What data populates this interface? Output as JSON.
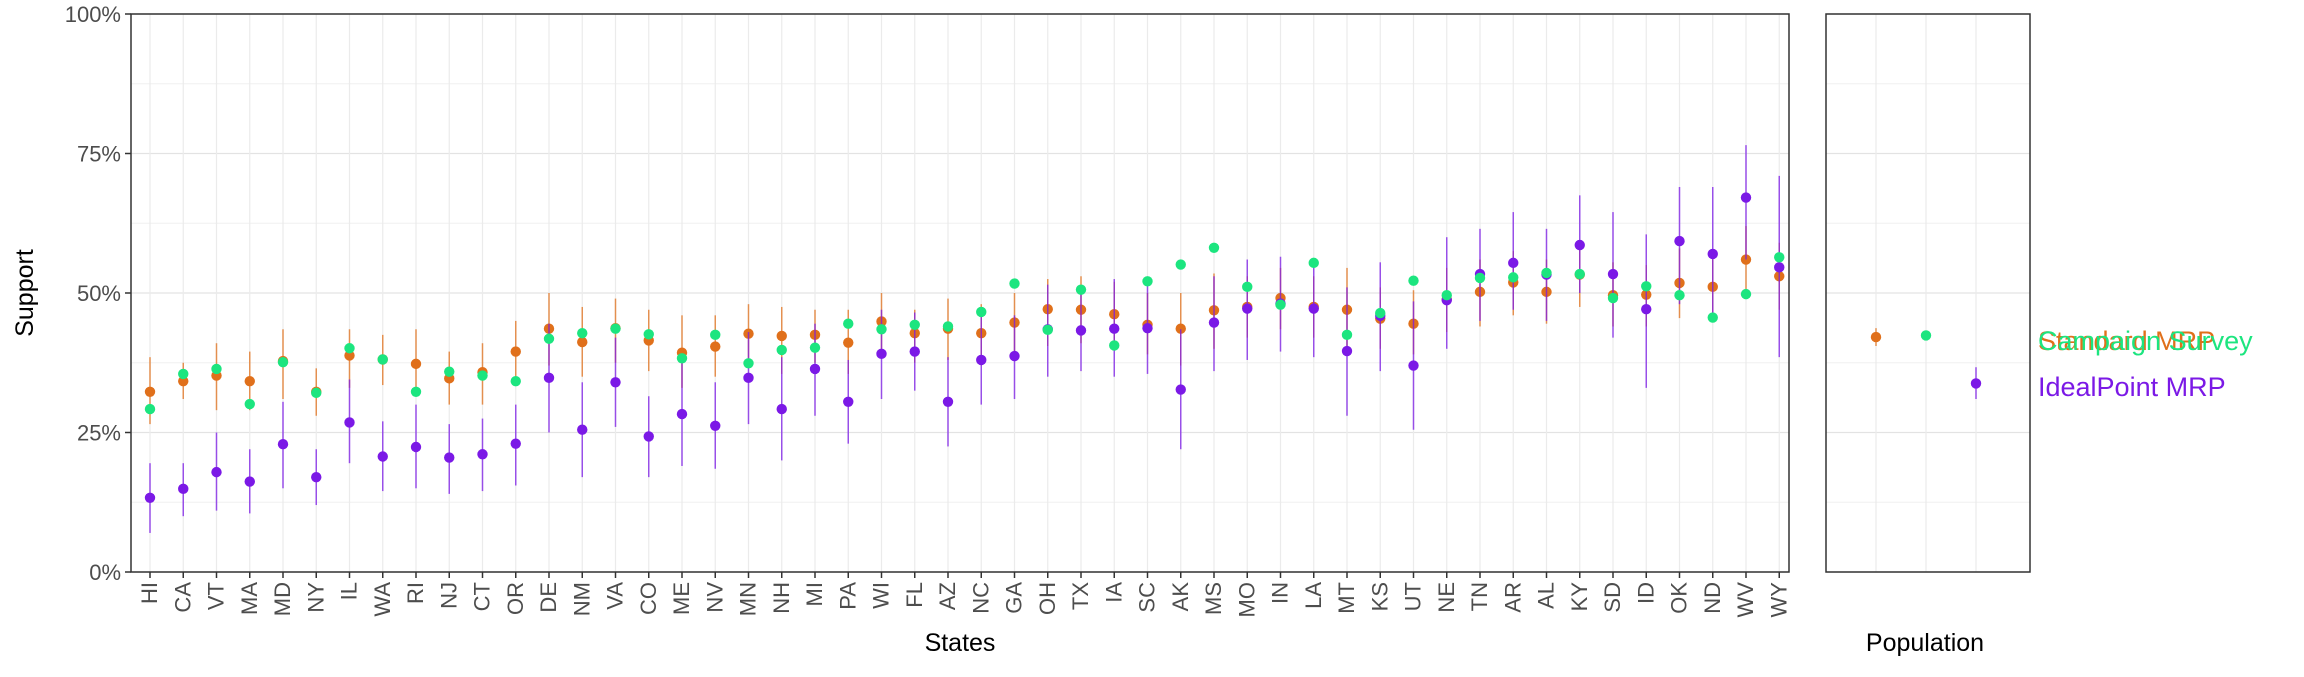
{
  "chart_data": {
    "type": "scatter",
    "ylabel": "Support",
    "xlabel": "States",
    "ylim": [
      0,
      1
    ],
    "y_ticks": [
      0,
      0.25,
      0.5,
      0.75,
      1.0
    ],
    "y_tick_labels": [
      "0%",
      "25%",
      "50%",
      "75%",
      "100%"
    ],
    "grid": true,
    "legend_position": "right",
    "categories": [
      "HI",
      "CA",
      "VT",
      "MA",
      "MD",
      "NY",
      "IL",
      "WA",
      "RI",
      "NJ",
      "CT",
      "OR",
      "DE",
      "NM",
      "VA",
      "CO",
      "ME",
      "NV",
      "MN",
      "NH",
      "MI",
      "PA",
      "WI",
      "FL",
      "AZ",
      "NC",
      "GA",
      "OH",
      "TX",
      "IA",
      "SC",
      "AK",
      "MS",
      "MO",
      "IN",
      "LA",
      "MT",
      "KS",
      "UT",
      "NE",
      "TN",
      "AR",
      "AL",
      "KY",
      "SD",
      "ID",
      "OK",
      "ND",
      "WV",
      "WY"
    ],
    "series": [
      {
        "name": "Standard MRP",
        "color": "#E0701B",
        "values": [
          0.323,
          0.342,
          0.352,
          0.342,
          0.378,
          0.323,
          0.388,
          0.381,
          0.373,
          0.347,
          0.358,
          0.395,
          0.436,
          0.412,
          0.437,
          0.415,
          0.393,
          0.404,
          0.427,
          0.423,
          0.425,
          0.411,
          0.449,
          0.428,
          0.436,
          0.428,
          0.447,
          0.471,
          0.47,
          0.462,
          0.443,
          0.436,
          0.469,
          0.475,
          0.491,
          0.475,
          0.47,
          0.454,
          0.445,
          0.489,
          0.502,
          0.519,
          0.502,
          0.533,
          0.496,
          0.497,
          0.518,
          0.511,
          0.56,
          0.53
        ],
        "lower": [
          0.265,
          0.31,
          0.29,
          0.29,
          0.31,
          0.28,
          0.33,
          0.335,
          0.32,
          0.3,
          0.3,
          0.335,
          0.37,
          0.35,
          0.375,
          0.36,
          0.33,
          0.35,
          0.365,
          0.355,
          0.375,
          0.355,
          0.39,
          0.375,
          0.38,
          0.37,
          0.395,
          0.405,
          0.41,
          0.4,
          0.39,
          0.37,
          0.4,
          0.42,
          0.435,
          0.42,
          0.4,
          0.4,
          0.39,
          0.43,
          0.44,
          0.46,
          0.445,
          0.475,
          0.44,
          0.44,
          0.455,
          0.455,
          0.495,
          0.47
        ],
        "upper": [
          0.385,
          0.375,
          0.41,
          0.395,
          0.435,
          0.365,
          0.435,
          0.425,
          0.435,
          0.395,
          0.41,
          0.45,
          0.5,
          0.475,
          0.49,
          0.47,
          0.46,
          0.46,
          0.48,
          0.475,
          0.47,
          0.47,
          0.5,
          0.47,
          0.49,
          0.48,
          0.5,
          0.525,
          0.53,
          0.52,
          0.5,
          0.5,
          0.535,
          0.53,
          0.545,
          0.53,
          0.545,
          0.51,
          0.505,
          0.545,
          0.56,
          0.575,
          0.56,
          0.595,
          0.555,
          0.55,
          0.58,
          0.57,
          0.62,
          0.59
        ]
      },
      {
        "name": "IdealPoint MRP",
        "color": "#7B19E6",
        "values": [
          0.133,
          0.149,
          0.179,
          0.162,
          0.229,
          0.17,
          0.268,
          0.207,
          0.224,
          0.205,
          0.211,
          0.23,
          0.348,
          0.255,
          0.34,
          0.243,
          0.283,
          0.262,
          0.348,
          0.292,
          0.364,
          0.305,
          0.391,
          0.395,
          0.305,
          0.38,
          0.387,
          0.435,
          0.433,
          0.436,
          0.437,
          0.327,
          0.447,
          0.472,
          0.481,
          0.472,
          0.396,
          0.459,
          0.37,
          0.487,
          0.534,
          0.554,
          0.533,
          0.586,
          0.534,
          0.471,
          0.593,
          0.57,
          0.671,
          0.546
        ],
        "lower": [
          0.07,
          0.1,
          0.11,
          0.105,
          0.15,
          0.12,
          0.195,
          0.145,
          0.15,
          0.14,
          0.145,
          0.155,
          0.25,
          0.17,
          0.26,
          0.17,
          0.19,
          0.185,
          0.265,
          0.2,
          0.28,
          0.23,
          0.31,
          0.325,
          0.225,
          0.3,
          0.31,
          0.35,
          0.36,
          0.35,
          0.355,
          0.22,
          0.36,
          0.38,
          0.395,
          0.385,
          0.28,
          0.36,
          0.255,
          0.4,
          0.45,
          0.47,
          0.45,
          0.5,
          0.42,
          0.33,
          0.48,
          0.45,
          0.56,
          0.385
        ],
        "upper": [
          0.195,
          0.195,
          0.25,
          0.22,
          0.305,
          0.22,
          0.345,
          0.27,
          0.3,
          0.265,
          0.275,
          0.3,
          0.445,
          0.34,
          0.42,
          0.315,
          0.375,
          0.34,
          0.43,
          0.385,
          0.445,
          0.38,
          0.47,
          0.465,
          0.385,
          0.46,
          0.46,
          0.515,
          0.505,
          0.525,
          0.515,
          0.435,
          0.53,
          0.56,
          0.565,
          0.56,
          0.51,
          0.555,
          0.485,
          0.6,
          0.615,
          0.645,
          0.615,
          0.675,
          0.645,
          0.605,
          0.69,
          0.69,
          0.765,
          0.71
        ]
      },
      {
        "name": "Campaign Survey",
        "color": "#1CE57F",
        "values": [
          0.292,
          0.355,
          0.364,
          0.301,
          0.376,
          0.321,
          0.401,
          0.381,
          0.323,
          0.359,
          0.352,
          0.342,
          0.418,
          0.428,
          0.436,
          0.426,
          0.383,
          0.425,
          0.374,
          0.398,
          0.402,
          0.445,
          0.435,
          0.443,
          0.44,
          0.466,
          0.517,
          0.434,
          0.506,
          0.406,
          0.521,
          0.551,
          0.581,
          0.511,
          0.479,
          0.554,
          0.425,
          0.464,
          0.522,
          0.496,
          0.527,
          0.528,
          0.536,
          0.534,
          0.491,
          0.512,
          0.496,
          0.456,
          0.498,
          0.564
        ]
      }
    ],
    "population_panel": {
      "xlabel": "Population",
      "points": [
        {
          "series": "Standard MRP",
          "value": 0.421,
          "lower": 0.405,
          "upper": 0.437
        },
        {
          "series": "Campaign Survey",
          "value": 0.424
        },
        {
          "series": "IdealPoint MRP",
          "value": 0.338,
          "lower": 0.31,
          "upper": 0.367
        }
      ]
    }
  }
}
